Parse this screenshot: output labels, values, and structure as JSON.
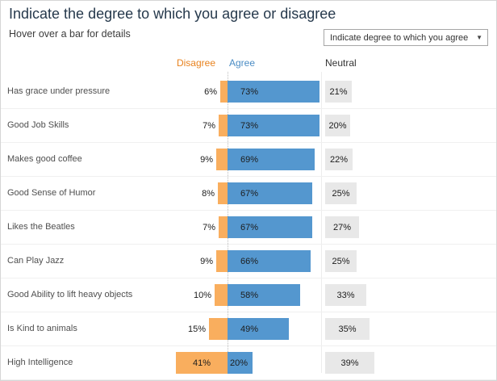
{
  "header": {
    "title": "Indicate the degree to which you agree or disagree",
    "subtitle": "Hover over a bar for details"
  },
  "dropdown": {
    "value": "Indicate degree to which you agree",
    "arrow": "▼"
  },
  "columns": {
    "disagree": "Disagree",
    "agree": "Agree",
    "neutral": "Neutral"
  },
  "chart_data": {
    "type": "bar",
    "subtype": "diverging-horizontal",
    "title": "Indicate the degree to which you agree or disagree",
    "unit": "%",
    "categories": [
      "Has grace under pressure",
      "Good Job Skills",
      "Makes good coffee",
      "Good Sense of Humor",
      "Likes the Beatles",
      "Can Play Jazz",
      "Good Ability to lift heavy objects",
      "Is Kind to animals",
      "High Intelligence"
    ],
    "series": [
      {
        "name": "Disagree",
        "color": "#f9ae5e",
        "values": [
          6,
          7,
          9,
          8,
          7,
          9,
          10,
          15,
          41
        ]
      },
      {
        "name": "Agree",
        "color": "#5497cf",
        "values": [
          73,
          73,
          69,
          67,
          67,
          66,
          58,
          49,
          20
        ]
      },
      {
        "name": "Neutral",
        "color": "#e8e8e8",
        "values": [
          21,
          20,
          22,
          25,
          27,
          25,
          33,
          35,
          39
        ]
      }
    ],
    "layout": {
      "orientation": "horizontal",
      "zero_axis": "dotted",
      "legend_position": "column-headers",
      "grid": "row-separators"
    }
  }
}
